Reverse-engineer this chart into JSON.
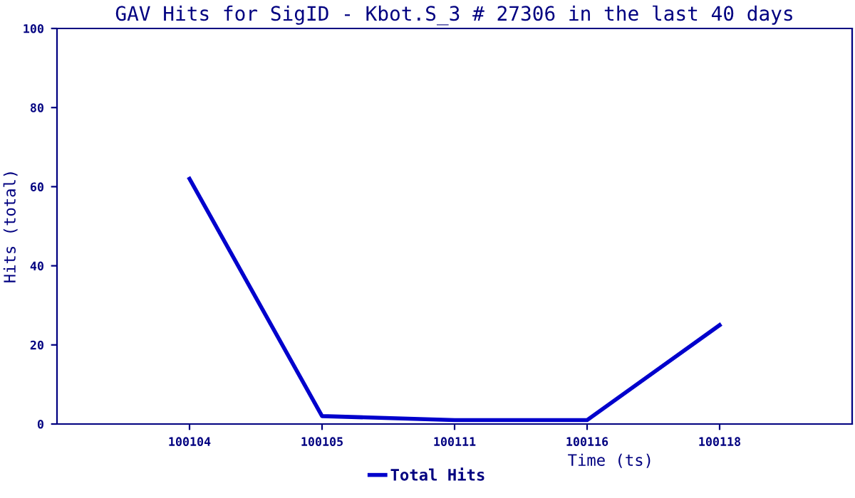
{
  "chart_data": {
    "type": "line",
    "title": "GAV Hits for SigID - Kbot.S_3 # 27306 in the last 40 days",
    "xlabel": "Time (ts)",
    "ylabel": "Hits (total)",
    "categories": [
      "100104",
      "100105",
      "100111",
      "100116",
      "100118"
    ],
    "series": [
      {
        "name": "Total Hits",
        "color": "#0000cc",
        "values": [
          62,
          2,
          1,
          1,
          25
        ]
      }
    ],
    "ylim": [
      0,
      100
    ],
    "yticks": [
      0,
      20,
      40,
      60,
      80,
      100
    ],
    "grid": false,
    "legend": "bottom",
    "marker": "none",
    "line_style": "solid"
  }
}
